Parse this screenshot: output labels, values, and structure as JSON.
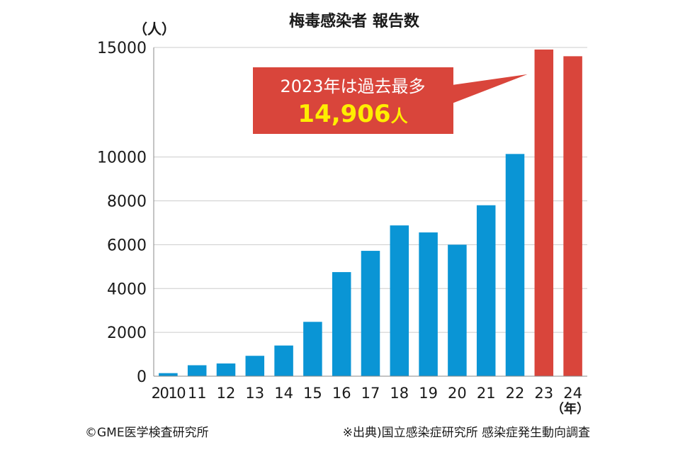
{
  "chart_data": {
    "type": "bar",
    "title": "梅毒感染者 報告数",
    "y_unit": "（人）",
    "x_unit": "（年）",
    "categories": [
      "2010",
      "11",
      "12",
      "13",
      "14",
      "15",
      "16",
      "17",
      "18",
      "19",
      "20",
      "21",
      "22",
      "23",
      "24"
    ],
    "values": [
      140,
      500,
      580,
      930,
      1400,
      2480,
      4750,
      5720,
      6880,
      6560,
      6000,
      7800,
      10140,
      14906,
      14600
    ],
    "y_ticks": [
      0,
      2000,
      4000,
      6000,
      8000,
      10000,
      15000
    ],
    "ylim": [
      0,
      15000
    ],
    "grid": true,
    "colors": {
      "regular": "#0a95d5",
      "highlight": "#d9453b",
      "callout_bg": "#d9453b",
      "callout_text": "#ffffff",
      "callout_number": "#ffee00",
      "grid": "#cccccc"
    },
    "highlighted_categories": [
      "23",
      "24"
    ],
    "annotation": {
      "line1": "2023年は過去最多",
      "number": "14,906",
      "unit": "人",
      "target_category": "23"
    }
  },
  "footer": {
    "copyright": "©GME医学検査研究所",
    "source": "※出典)国立感染症研究所 感染症発生動向調査"
  }
}
